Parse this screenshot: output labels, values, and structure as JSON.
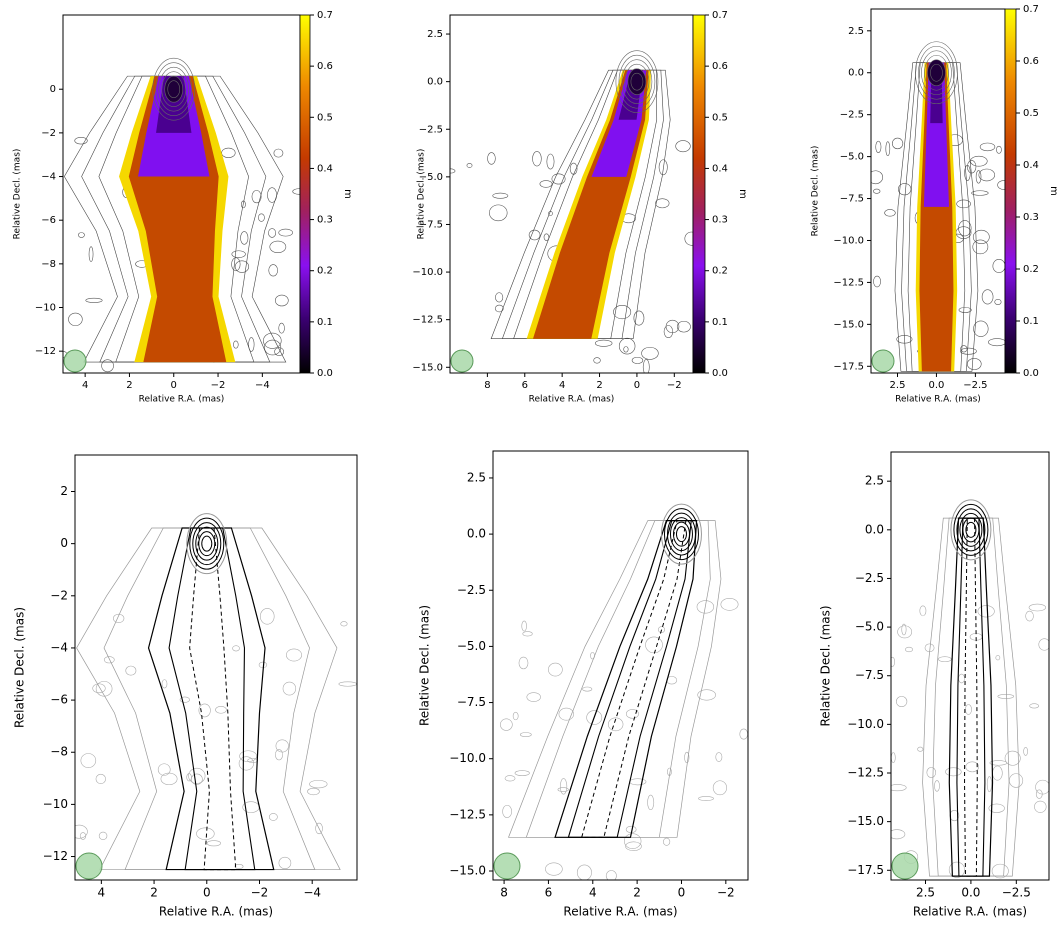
{
  "chart_data": [
    {
      "type": "image",
      "x_label": "Relative R.A. (mas)",
      "y_label": "Relative Decl. (mas)",
      "xlim": [
        5,
        -5.7
      ],
      "ylim": [
        -13,
        3.4
      ],
      "xticks": [
        4,
        2,
        0,
        {
          "value": -2,
          "label": "−2"
        },
        {
          "value": -4,
          "label": "−4"
        }
      ],
      "yticks": [
        0,
        {
          "value": -2,
          "label": "−2"
        },
        {
          "value": -4,
          "label": "−4"
        },
        {
          "value": -6,
          "label": "−6"
        },
        {
          "value": -8,
          "label": "−8"
        },
        {
          "value": -10,
          "label": "−10"
        },
        {
          "value": -12,
          "label": "−12"
        }
      ],
      "colorbar_label": "m",
      "clim": [
        0,
        0.7
      ],
      "cticks": [
        {
          "value": 0,
          "label": "0.0"
        },
        0.1,
        0.2,
        0.3,
        0.4,
        0.5,
        0.6,
        0.7
      ]
    },
    {
      "type": "image",
      "x_label": "Relative R.A. (mas)",
      "y_label": "Relative Decl. (mas)",
      "xlim": [
        10,
        -3
      ],
      "ylim": [
        -15.3,
        3.5
      ],
      "xticks": [
        8,
        6,
        4,
        2,
        0,
        {
          "value": -2,
          "label": "−2"
        }
      ],
      "yticks": [
        2.5,
        {
          "value": 0,
          "label": "0.0"
        },
        {
          "value": -2.5,
          "label": "−2.5"
        },
        {
          "value": -5,
          "label": "−5.0"
        },
        {
          "value": -7.5,
          "label": "−7.5"
        },
        {
          "value": -10,
          "label": "−10.0"
        },
        {
          "value": -12.5,
          "label": "−12.5"
        },
        {
          "value": -15,
          "label": "−15.0"
        }
      ],
      "colorbar_label": "m",
      "clim": [
        0,
        0.7
      ],
      "cticks": [
        {
          "value": 0,
          "label": "0.0"
        },
        0.1,
        0.2,
        0.3,
        0.4,
        0.5,
        0.6,
        0.7
      ]
    },
    {
      "type": "image",
      "x_label": "Relative R.A. (mas)",
      "y_label": "Relative Decl. (mas)",
      "xlim": [
        4.2,
        -4.4
      ],
      "ylim": [
        -17.9,
        3.8
      ],
      "xticks": [
        2.5,
        {
          "value": 0,
          "label": "0.0"
        },
        {
          "value": -2.5,
          "label": "−2.5"
        }
      ],
      "yticks": [
        2.5,
        {
          "value": 0,
          "label": "0.0"
        },
        {
          "value": -2.5,
          "label": "−2.5"
        },
        {
          "value": -5,
          "label": "−5.0"
        },
        {
          "value": -7.5,
          "label": "−7.5"
        },
        {
          "value": -10,
          "label": "−10.0"
        },
        {
          "value": -12.5,
          "label": "−12.5"
        },
        {
          "value": -15,
          "label": "−15.0"
        },
        {
          "value": -17.5,
          "label": "−17.5"
        }
      ],
      "colorbar_label": "m",
      "clim": [
        0,
        0.7
      ],
      "cticks": [
        {
          "value": 0,
          "label": "0.0"
        },
        0.1,
        0.2,
        0.3,
        0.4,
        0.5,
        0.6,
        0.7
      ]
    },
    {
      "type": "contour",
      "x_label": "Relative R.A. (mas)",
      "y_label": "Relative Decl. (mas)",
      "xlim": [
        5,
        -5.7
      ],
      "ylim": [
        -12.9,
        3.4
      ],
      "xticks": [
        4,
        2,
        0,
        {
          "value": -2,
          "label": "−2"
        },
        {
          "value": -4,
          "label": "−4"
        }
      ],
      "yticks": [
        2,
        0,
        {
          "value": -2,
          "label": "−2"
        },
        {
          "value": -4,
          "label": "−4"
        },
        {
          "value": -6,
          "label": "−6"
        },
        {
          "value": -8,
          "label": "−8"
        },
        {
          "value": -10,
          "label": "−10"
        },
        {
          "value": -12,
          "label": "−12"
        }
      ]
    },
    {
      "type": "contour",
      "x_label": "Relative R.A. (mas)",
      "y_label": "Relative Decl. (mas)",
      "xlim": [
        8.5,
        -3
      ],
      "ylim": [
        -15.4,
        3.7
      ],
      "xticks": [
        8,
        6,
        4,
        2,
        0,
        {
          "value": -2,
          "label": "−2"
        }
      ],
      "yticks": [
        2.5,
        {
          "value": 0,
          "label": "0.0"
        },
        {
          "value": -2.5,
          "label": "−2.5"
        },
        {
          "value": -5,
          "label": "−5.0"
        },
        {
          "value": -7.5,
          "label": "−7.5"
        },
        {
          "value": -10,
          "label": "−10.0"
        },
        {
          "value": -12.5,
          "label": "−12.5"
        },
        {
          "value": -15,
          "label": "−15.0"
        }
      ]
    },
    {
      "type": "contour",
      "x_label": "Relative R.A. (mas)",
      "y_label": "Relative Decl. (mas)",
      "xlim": [
        4.4,
        -4.3
      ],
      "ylim": [
        -18,
        4
      ],
      "xticks": [
        2.5,
        {
          "value": 0,
          "label": "0.0"
        },
        {
          "value": -2.5,
          "label": "−2.5"
        }
      ],
      "yticks": [
        2.5,
        {
          "value": 0,
          "label": "0.0"
        },
        {
          "value": -2.5,
          "label": "−2.5"
        },
        {
          "value": -5,
          "label": "−5.0"
        },
        {
          "value": -7.5,
          "label": "−7.5"
        },
        {
          "value": -10,
          "label": "−10.0"
        },
        {
          "value": -12.5,
          "label": "−12.5"
        },
        {
          "value": -15,
          "label": "−15.0"
        },
        {
          "value": -17.5,
          "label": "−17.5"
        }
      ]
    }
  ]
}
